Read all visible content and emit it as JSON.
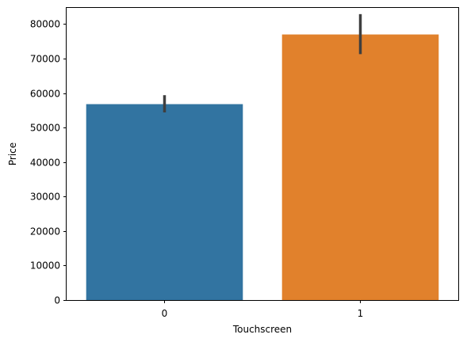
{
  "chart_data": {
    "type": "bar",
    "xlabel": "Touchscreen",
    "ylabel": "Price",
    "categories": [
      "0",
      "1"
    ],
    "values": [
      56800,
      77000
    ],
    "error_bars": [
      {
        "low": 54400,
        "high": 59400
      },
      {
        "low": 71300,
        "high": 82900
      }
    ],
    "colors": [
      "#3274a1",
      "#e1812c"
    ],
    "error_color": "#3f3f3f",
    "ylim": [
      0,
      84700
    ],
    "yticks": [
      0,
      10000,
      20000,
      30000,
      40000,
      50000,
      60000,
      70000,
      80000
    ],
    "ytick_labels": [
      "0",
      "10000",
      "20000",
      "30000",
      "40000",
      "50000",
      "60000",
      "70000",
      "80000"
    ],
    "grid": false,
    "legend": "none"
  }
}
